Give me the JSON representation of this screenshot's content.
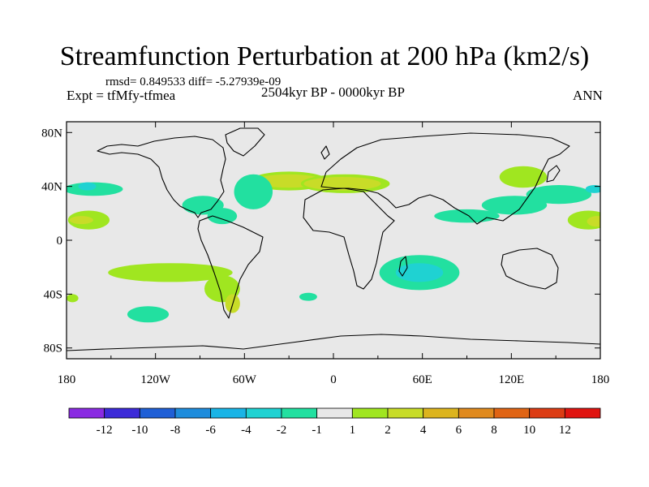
{
  "chart_data": {
    "type": "heatmap",
    "title": "Streamfunction Perturbation at 200 hPa (km2/s)",
    "stats": "rmsd= 0.849533 diff= -5.27939e-09",
    "left_label": "Expt = tfMfy-tfmea",
    "center_label": "2504kyr BP - 0000kyr BP",
    "right_label": "ANN",
    "xlim": [
      -180,
      180
    ],
    "ylim": [
      -90,
      90
    ],
    "x_ticks": [
      {
        "value": -180,
        "label": "180"
      },
      {
        "value": -120,
        "label": "120W"
      },
      {
        "value": -60,
        "label": "60W"
      },
      {
        "value": 0,
        "label": "0"
      },
      {
        "value": 60,
        "label": "60E"
      },
      {
        "value": 120,
        "label": "120E"
      },
      {
        "value": 180,
        "label": "180"
      }
    ],
    "y_ticks": [
      {
        "value": 80,
        "label": "80N"
      },
      {
        "value": 40,
        "label": "40N"
      },
      {
        "value": 0,
        "label": "0"
      },
      {
        "value": -40,
        "label": "40S"
      },
      {
        "value": -80,
        "label": "80S"
      }
    ],
    "colorbar": {
      "boundaries": [
        -12,
        -10,
        -8,
        -6,
        -4,
        -2,
        -1,
        1,
        2,
        4,
        6,
        8,
        10,
        12
      ],
      "labels": [
        "-12",
        "-10",
        "-8",
        "-6",
        "-4",
        "-2",
        "-1",
        "1",
        "2",
        "4",
        "6",
        "8",
        "10",
        "12"
      ],
      "colors": [
        "#8a2be2",
        "#3c2ad8",
        "#1f5fd6",
        "#1e8cdc",
        "#19b4e6",
        "#1fd2d2",
        "#22e0a0",
        "#e8e8e8",
        "#a0e620",
        "#c8dc28",
        "#dcb41e",
        "#e08a1e",
        "#e06414",
        "#dc3c14",
        "#e01410"
      ]
    },
    "field_blobs": [
      {
        "lon": -30,
        "lat": 44,
        "rx": 26,
        "ry": 7,
        "value": 1.5
      },
      {
        "lon": -30,
        "lat": 44,
        "rx": 23,
        "ry": 5,
        "value": 3
      },
      {
        "lon": 8,
        "lat": 42,
        "rx": 30,
        "ry": 7,
        "value": 1.5
      },
      {
        "lon": 6,
        "lat": 42,
        "rx": 26,
        "ry": 5,
        "value": 3
      },
      {
        "lon": -54,
        "lat": 36,
        "rx": 13,
        "ry": 13,
        "value": -1.5
      },
      {
        "lon": -88,
        "lat": 26,
        "rx": 14,
        "ry": 7,
        "value": -1.5
      },
      {
        "lon": -75,
        "lat": 18,
        "rx": 10,
        "ry": 6,
        "value": -1.5
      },
      {
        "lon": -162,
        "lat": 38,
        "rx": 20,
        "ry": 5,
        "value": -1.5
      },
      {
        "lon": -166,
        "lat": 40,
        "rx": 6,
        "ry": 3,
        "value": -2.5
      },
      {
        "lon": -165,
        "lat": 15,
        "rx": 14,
        "ry": 7,
        "value": 1.5
      },
      {
        "lon": -170,
        "lat": 15,
        "rx": 8,
        "ry": 3,
        "value": 3
      },
      {
        "lon": 90,
        "lat": 18,
        "rx": 22,
        "ry": 5,
        "value": -1.5
      },
      {
        "lon": 122,
        "lat": 26,
        "rx": 22,
        "ry": 7,
        "value": -1.5
      },
      {
        "lon": 152,
        "lat": 34,
        "rx": 22,
        "ry": 7,
        "value": -1.5
      },
      {
        "lon": 176,
        "lat": 38,
        "rx": 6,
        "ry": 3,
        "value": -2.5
      },
      {
        "lon": 128,
        "lat": 47,
        "rx": 16,
        "ry": 8,
        "value": 1.5
      },
      {
        "lon": 172,
        "lat": 15,
        "rx": 14,
        "ry": 7,
        "value": 1.5
      },
      {
        "lon": 178,
        "lat": 14,
        "rx": 7,
        "ry": 4,
        "value": 3
      },
      {
        "lon": 58,
        "lat": -24,
        "rx": 27,
        "ry": 13,
        "value": -1.5
      },
      {
        "lon": 58,
        "lat": -24,
        "rx": 16,
        "ry": 7,
        "value": -2.5
      },
      {
        "lon": -110,
        "lat": -24,
        "rx": 42,
        "ry": 7,
        "value": 1.5
      },
      {
        "lon": -75,
        "lat": -36,
        "rx": 12,
        "ry": 10,
        "value": 1.5
      },
      {
        "lon": -68,
        "lat": -47,
        "rx": 5,
        "ry": 7,
        "value": 3
      },
      {
        "lon": -125,
        "lat": -55,
        "rx": 14,
        "ry": 6,
        "value": -1.5
      },
      {
        "lon": -17,
        "lat": -42,
        "rx": 6,
        "ry": 3,
        "value": -1.5
      },
      {
        "lon": -176,
        "lat": -43,
        "rx": 4,
        "ry": 3,
        "value": 1.5
      }
    ]
  }
}
